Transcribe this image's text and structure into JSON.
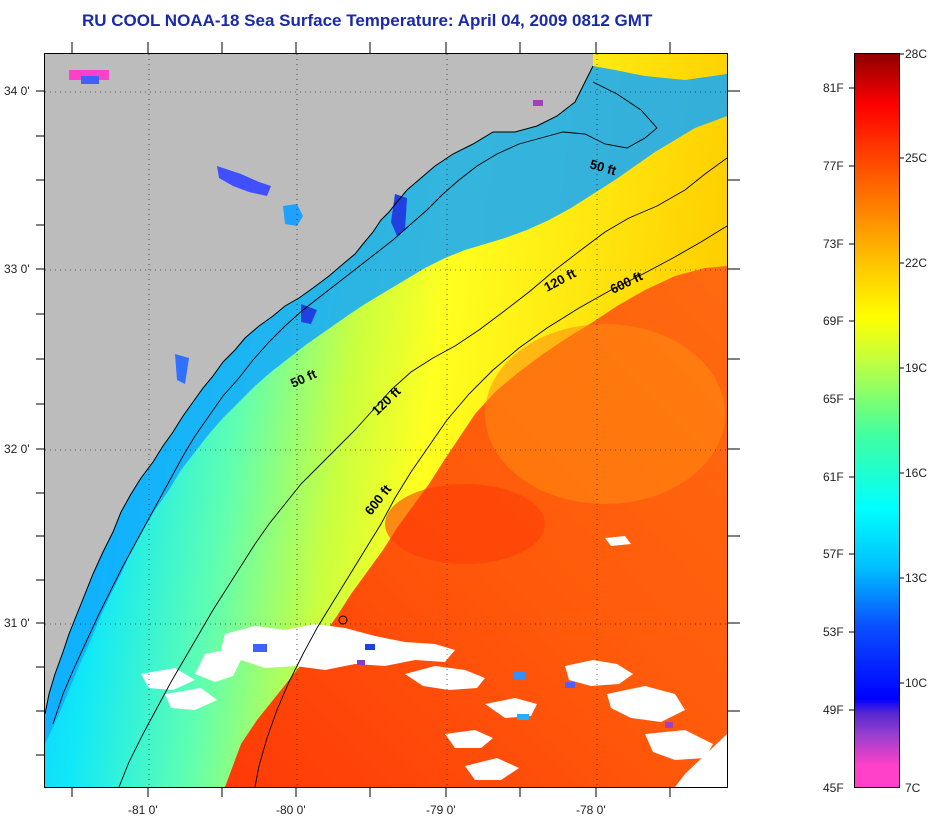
{
  "title": "RU COOL  NOAA-18  Sea Surface Temperature:  April 04, 2009 0812 GMT",
  "latitude_labels": [
    "34 0'",
    "33 0'",
    "32 0'",
    "31 0'"
  ],
  "longitude_labels": [
    "-81 0'",
    "-80 0'",
    "-79 0'",
    "-78 0'"
  ],
  "contour_labels": [
    "50 ft",
    "50 ft",
    "120 ft",
    "120 ft",
    "600 ft",
    "600 ft"
  ],
  "colorbar": {
    "fahrenheit": [
      "81F",
      "77F",
      "73F",
      "69F",
      "65F",
      "61F",
      "57F",
      "53F",
      "49F",
      "45F"
    ],
    "celsius": [
      "28C",
      "25C",
      "22C",
      "19C",
      "16C",
      "13C",
      "10C",
      "7C"
    ],
    "min_celsius": 7,
    "max_celsius": 28
  },
  "colors": {
    "title": "#1a2aa8",
    "land": "#bcbcbc",
    "cloud": "#ffffff",
    "warm_water": "#ff5a0a",
    "cool_water": "#00e0ff"
  }
}
